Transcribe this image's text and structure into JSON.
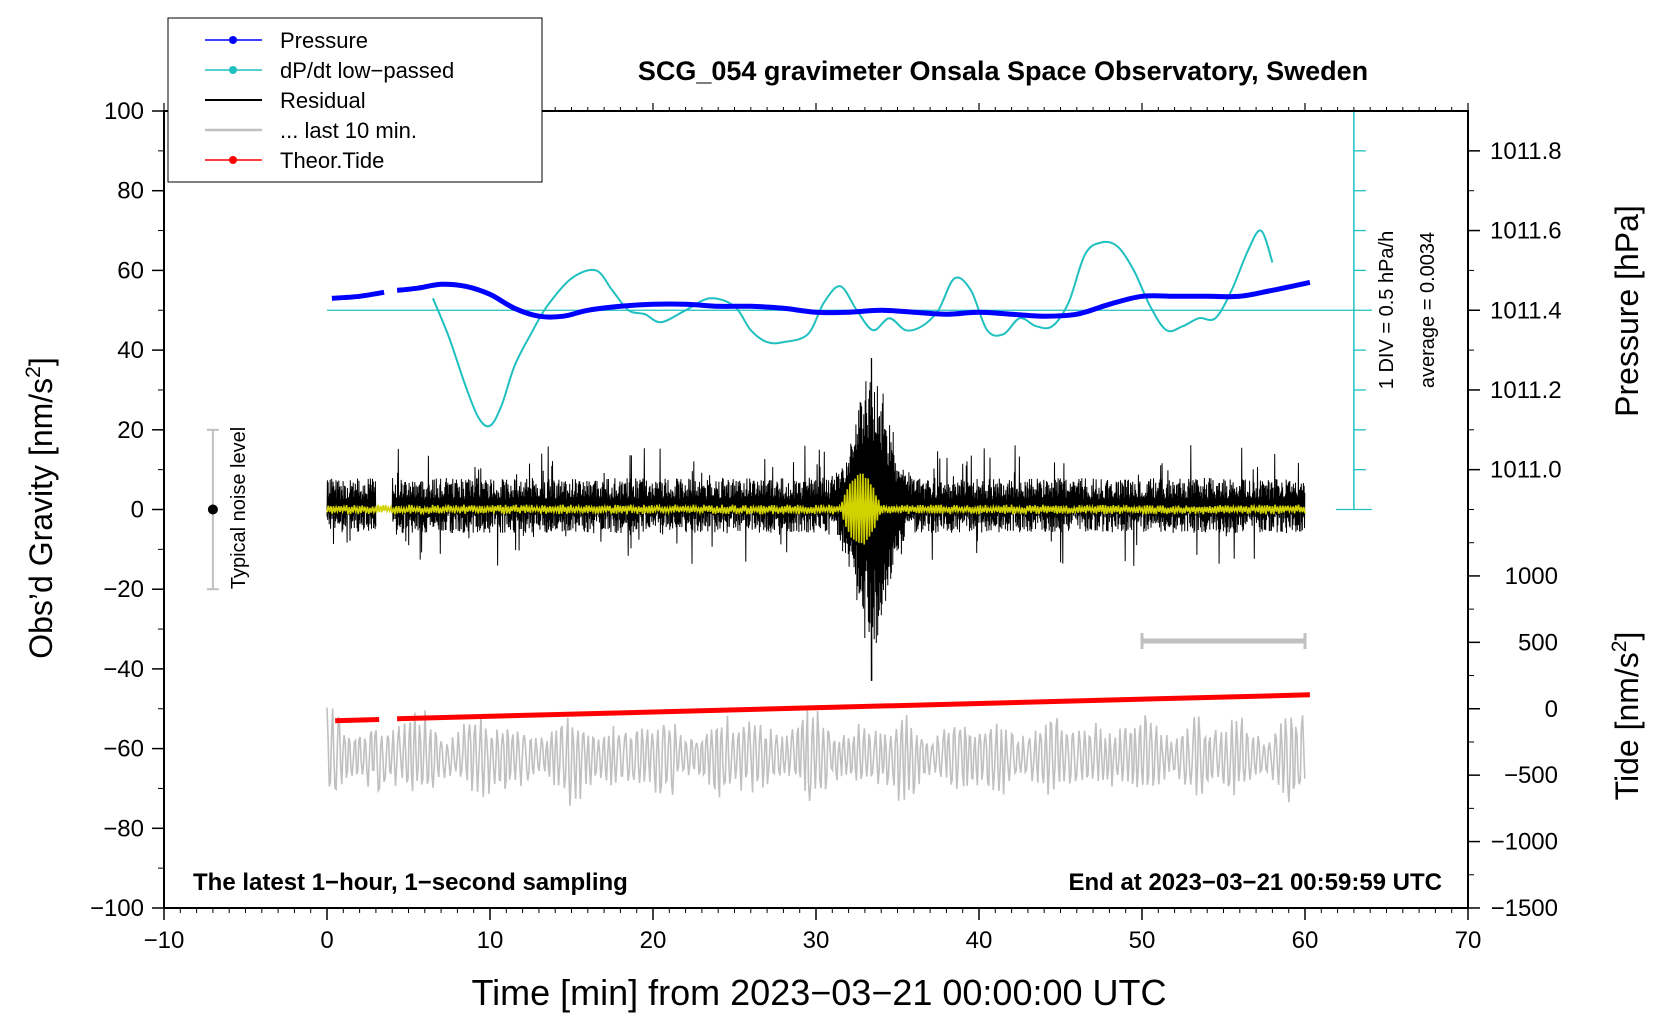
{
  "chart_data": {
    "type": "line",
    "title": "SCG_054 gravimeter Onsala Space Observatory, Sweden",
    "subtitle_left": "The latest 1−hour, 1−second sampling",
    "subtitle_right": "End at 2023−03−21 00:59:59 UTC",
    "xlabel": "Time [min] from 2023−03−21 00:00:00 UTC",
    "ylabel_left": "Obs’d Gravity [nm/s",
    "ylabel_left_sup": "2",
    "ylabel_left_end": "]",
    "ylabel_right_pressure": "Pressure [hPa]",
    "ylabel_right_tide": "Tide [nm/s",
    "ylabel_right_tide_sup": "2",
    "ylabel_right_tide_end": "]",
    "xlim": [
      -10,
      70
    ],
    "ylim": [
      -100,
      100
    ],
    "x_ticks": [
      -10,
      0,
      10,
      20,
      30,
      40,
      50,
      60,
      70
    ],
    "x_tick_labels": [
      "−10",
      "0",
      "10",
      "20",
      "30",
      "40",
      "50",
      "60",
      "70"
    ],
    "y_ticks": [
      100,
      80,
      60,
      40,
      20,
      0,
      -20,
      -40,
      -60,
      -80,
      -100
    ],
    "y_tick_labels": [
      "100",
      "80",
      "60",
      "40",
      "20",
      "0",
      "−20",
      "−40",
      "−60",
      "−80",
      "−100"
    ],
    "pressure_axis": {
      "ticks": [
        1011.8,
        1011.6,
        1011.4,
        1011.2,
        1011.0
      ],
      "tick_labels": [
        "1011.8",
        "1011.6",
        "1011.4",
        "1011.2",
        "1011.0"
      ],
      "ref_value": 1011.4,
      "ref_gravity": 50,
      "gravity_per_hpa": 100
    },
    "tide_axis": {
      "ticks": [
        1000,
        500,
        0,
        -500,
        -1000,
        -1500
      ],
      "tick_labels": [
        "1000",
        "500",
        "0",
        "−500",
        "−1000",
        "−1500"
      ],
      "ref_value": 0,
      "ref_gravity": -50,
      "gravity_per_unit": 0.03333
    },
    "dpdt_scale": {
      "label_line1": "1 DIV = 0.5 hPa/h",
      "label_line2": "average = 0.0034",
      "x_min": 63,
      "y_bottom": 0,
      "y_top": 100,
      "zero_level": 50,
      "div_step": 10
    },
    "noise_bar": {
      "label": "Typical noise level",
      "x_min": -7,
      "center": 0,
      "low": -20,
      "high": 20
    },
    "ten_min_bar": {
      "x_start": 50,
      "x_end": 60,
      "y": -33
    },
    "legend": [
      {
        "label": "Pressure",
        "color": "#0000ff",
        "marker": "dot"
      },
      {
        "label": "dP/dt low−passed",
        "color": "#00c0c0",
        "marker": "dot"
      },
      {
        "label": "Residual",
        "color": "#000000",
        "marker": "line"
      },
      {
        "label": "... last 10 min.",
        "color": "#c0c0c0",
        "marker": "line"
      },
      {
        "label": "Theor.Tide",
        "color": "#ff0000",
        "marker": "dot"
      }
    ],
    "colors": {
      "pressure": "#0000ff",
      "dpdt": "#20c0c0",
      "residual": "#000000",
      "residual_lowpass": "#d2d200",
      "last10": "#c0c0c0",
      "tide": "#ff0000"
    },
    "series": [
      {
        "name": "Pressure",
        "y_units": "gravity-equivalent (pressure axis)",
        "x": [
          0.3,
          2,
          3.5,
          4.3,
          5.5,
          7,
          8.5,
          10,
          11.5,
          13,
          14.5,
          16,
          18,
          20,
          22,
          24,
          26,
          28,
          30,
          32,
          34,
          36,
          38,
          40,
          42,
          44,
          46,
          48,
          50,
          52,
          54,
          56,
          58,
          60.3
        ],
        "y": [
          53,
          53.5,
          54.5,
          55,
          55.5,
          56.5,
          56,
          54,
          50.5,
          48.5,
          48.5,
          50,
          51,
          51.5,
          51.5,
          51,
          51,
          50.5,
          49.5,
          49.5,
          50,
          49.5,
          49,
          49.5,
          49,
          48.5,
          49,
          51.5,
          53.5,
          53.5,
          53.5,
          53.5,
          55,
          57
        ],
        "gap": [
          3.5,
          4.3
        ]
      },
      {
        "name": "dP/dt low−passed",
        "y_units": "gravity-equivalent (dP/dt scale)",
        "x": [
          6.5,
          7.5,
          8.5,
          9.3,
          10,
          10.7,
          11.5,
          12.5,
          13.5,
          15,
          16.5,
          17.5,
          18.5,
          19.5,
          20.5,
          22,
          23.5,
          25,
          26,
          27,
          28,
          29.5,
          30.5,
          31.5,
          32.5,
          33.5,
          34.5,
          35.5,
          36.5,
          37.5,
          38.5,
          39.5,
          40.5,
          41.5,
          42.5,
          43.5,
          44.5,
          45.5,
          46.5,
          47.5,
          48.5,
          49.5,
          50.5,
          51.5,
          52.5,
          53.5,
          54.5,
          55.5,
          56.5,
          57.3,
          58
        ],
        "y": [
          53,
          43,
          31,
          23,
          21,
          26,
          36,
          44,
          51,
          58,
          60,
          55,
          50,
          49,
          47,
          50,
          53,
          51,
          45,
          42,
          42,
          44,
          52,
          56,
          50,
          45,
          48,
          45,
          46,
          50,
          58,
          55,
          45,
          44,
          48,
          46,
          46,
          52,
          64,
          67,
          66,
          60,
          51,
          45,
          46,
          48,
          48,
          55,
          65,
          70,
          62
        ]
      },
      {
        "name": "Residual",
        "y_units": "nm/s^2",
        "x_start": 0,
        "x_end": 60,
        "gap": [
          3,
          4
        ],
        "baseline": 1,
        "noise_amp": 6,
        "event": {
          "x_start": 29.5,
          "x_end": 36.5,
          "peak_x": 33.4,
          "max": 38,
          "min": -43
        }
      },
      {
        "name": "Residual low−passed",
        "y_units": "nm/s^2",
        "x_start": 0,
        "x_end": 60,
        "noise_amp": 1.2,
        "event": {
          "x_start": 31.5,
          "x_end": 34,
          "amp": 8
        }
      },
      {
        "name": "... last 10 min.",
        "y_units": "nm/s^2 (offset)",
        "x_start": 0,
        "x_end": 60,
        "baseline": -62,
        "amp_min": 5,
        "amp_max": 13
      },
      {
        "name": "Theor.Tide",
        "y_units": "nm/s^2 (tide axis)",
        "x": [
          0.5,
          3.2,
          4.3,
          60.3
        ],
        "y": [
          -53,
          -52.7,
          -52.5,
          -46.5
        ],
        "gap": [
          3.2,
          4.3
        ]
      }
    ]
  }
}
